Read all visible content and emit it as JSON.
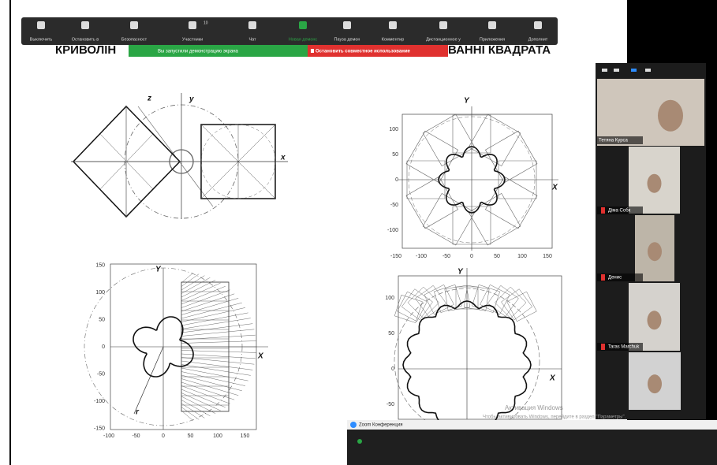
{
  "toolbar": {
    "items": [
      "Выключить",
      "Остановить в",
      "Безопасност",
      "Участники",
      "Чат",
      "Новая демонс",
      "Пауза демон",
      "Комментир",
      "Дистанционное у",
      "Приложения",
      "Дополнит"
    ],
    "participants_count": "10"
  },
  "banner": {
    "status": "Вы запустили демонстрацию экрана",
    "stop": "Остановить совместное использование"
  },
  "slide": {
    "title_left": "КРИВОЛІН",
    "title_right": "ВАННІ КВАДРАТА",
    "plots": [
      {
        "axis_labels": [
          "z",
          "y",
          "x"
        ]
      },
      {
        "axis_labels": [
          "Y",
          "X"
        ],
        "yticks": [
          "100",
          "50",
          "0",
          "-50",
          "-100"
        ],
        "xticks": [
          "-150",
          "-100",
          "-50",
          "0",
          "50",
          "100",
          "150"
        ]
      },
      {
        "axis_labels": [
          "Y",
          "X",
          "r"
        ],
        "yticks": [
          "150",
          "100",
          "50",
          "0",
          "-50",
          "-100",
          "-150"
        ],
        "xticks": [
          "-100",
          "-50",
          "0",
          "50",
          "100",
          "150"
        ]
      },
      {
        "axis_labels": [
          "Y",
          "X"
        ],
        "yticks": [
          "100",
          "50",
          "0",
          "-50"
        ]
      }
    ]
  },
  "participants": [
    "Тетяна Курса",
    "Діма Собк",
    "Денис",
    "Taras Marchuk"
  ],
  "watermark": {
    "title": "Активация Windows",
    "text": "Чтобы активировать Windows, перейдите в раздел \"Параметры\"."
  },
  "window": {
    "title": "Zoom Конференция"
  }
}
